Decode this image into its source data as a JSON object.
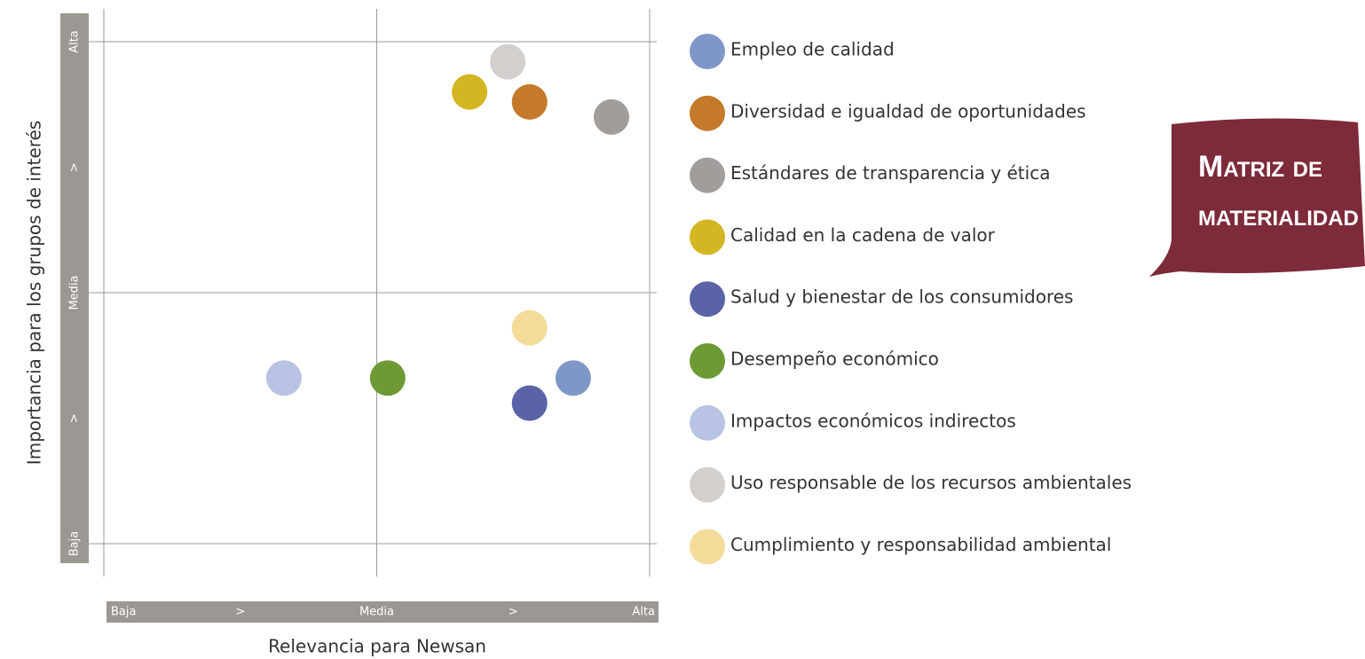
{
  "chart_data": {
    "type": "scatter",
    "title_lines": [
      "Matriz de",
      "materialidad"
    ],
    "x_label": "Relevancia para Newsan",
    "y_label": "Importancia para los grupos de interés",
    "xlim": [
      0,
      10
    ],
    "ylim": [
      0,
      10
    ],
    "xticks": [
      {
        "value": 0,
        "label": "Baja"
      },
      {
        "value": 5,
        "label": "Media"
      },
      {
        "value": 10,
        "label": "Alta"
      }
    ],
    "yticks": [
      {
        "value": 0,
        "label": "Baja"
      },
      {
        "value": 5,
        "label": "Media"
      },
      {
        "value": 10,
        "label": "Alta"
      }
    ],
    "x_arrows": [
      ">",
      ">"
    ],
    "y_arrows": [
      ">",
      ">"
    ],
    "grid": true,
    "series": [
      {
        "name": "Empleo de calidad",
        "color": "#7f97c8",
        "x": [
          8.6
        ],
        "values": [
          3.3
        ]
      },
      {
        "name": "Diversidad e igualdad de oportunidades",
        "color": "#c47a2a",
        "x": [
          7.8
        ],
        "values": [
          8.8
        ]
      },
      {
        "name": "Estándares de transparencia y ética",
        "color": "#a09d9a",
        "x": [
          9.3
        ],
        "values": [
          8.5
        ]
      },
      {
        "name": "Calidad en la cadena de valor",
        "color": "#d4b622",
        "x": [
          6.7
        ],
        "values": [
          9.0
        ]
      },
      {
        "name": "Salud y bienestar de los consumidores",
        "color": "#5a63a6",
        "x": [
          7.8
        ],
        "values": [
          2.8
        ]
      },
      {
        "name": "Desempeño económico",
        "color": "#6e9a36",
        "x": [
          5.2
        ],
        "values": [
          3.3
        ]
      },
      {
        "name": "Impactos económicos indirectos",
        "color": "#b9c4e4",
        "x": [
          3.3
        ],
        "values": [
          3.3
        ]
      },
      {
        "name": "Uso responsable de los recursos ambientales",
        "color": "#d2cfcd",
        "x": [
          7.4
        ],
        "values": [
          9.6
        ]
      },
      {
        "name": "Cumplimiento y responsabilidad ambiental",
        "color": "#f3dc9a",
        "x": [
          7.8
        ],
        "values": [
          4.3
        ]
      }
    ]
  }
}
